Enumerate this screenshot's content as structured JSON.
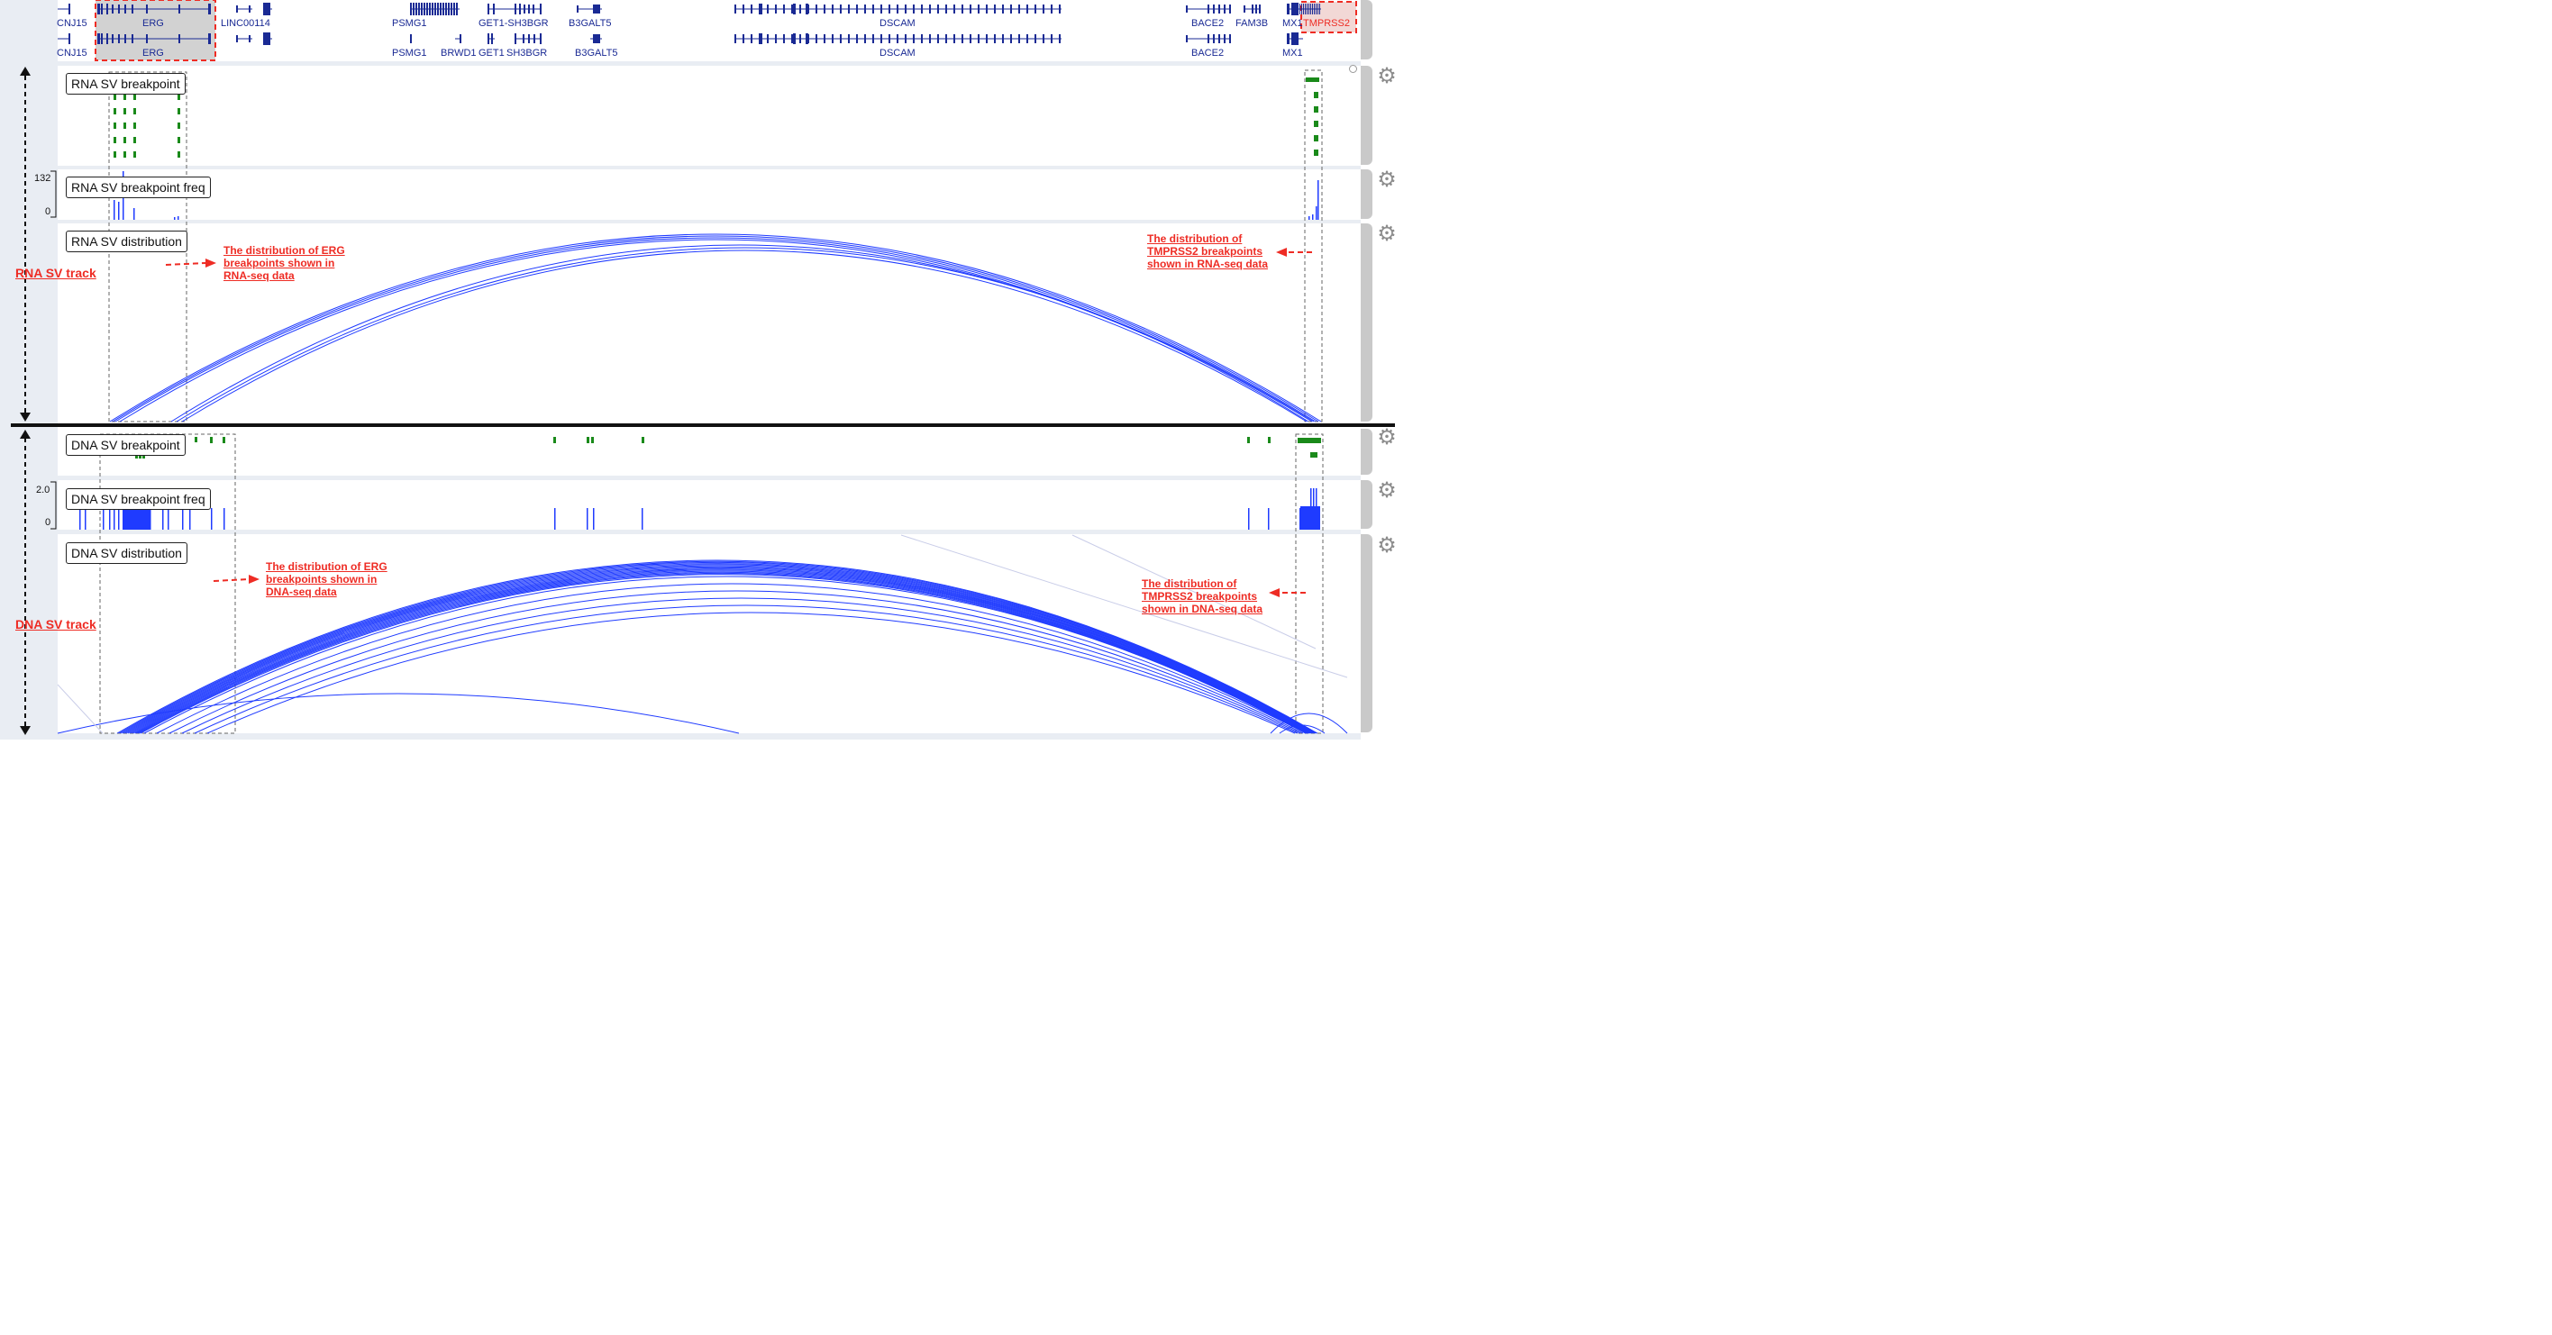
{
  "genes": {
    "top_row": [
      "CNJ15",
      "ERG",
      "LINC00114",
      "PSMG1",
      "GET1-SH3BGR",
      "B3GALT5",
      "DSCAM",
      "BACE2",
      "FAM3B",
      "MX1",
      "TMPRSS2"
    ],
    "bottom_row": [
      "CNJ15",
      "ERG",
      "PSMG1",
      "BRWD1",
      "GET1",
      "SH3BGR",
      "B3GALT5",
      "DSCAM",
      "BACE2",
      "MX1"
    ]
  },
  "tracks": {
    "rna_breakpoint": "RNA SV breakpoint",
    "rna_freq": "RNA SV breakpoint freq",
    "rna_freq_max": "132",
    "rna_freq_min": "0",
    "rna_distribution": "RNA SV distribution",
    "dna_breakpoint": "DNA SV breakpoint",
    "dna_freq": "DNA SV breakpoint freq",
    "dna_freq_max": "2.0",
    "dna_freq_min": "0",
    "dna_distribution": "DNA SV distribution"
  },
  "section_labels": {
    "rna": "RNA SV track",
    "dna": "DNA SV track"
  },
  "annotations": {
    "rna_erg": "The distribution of ERG\nbreakpoints shown in\nRNA-seq data",
    "rna_tmprss2": "The distribution of\nTMPRSS2 breakpoints\nshown in RNA-seq data",
    "dna_erg": "The distribution of ERG\nbreakpoints shown in\nDNA-seq data",
    "dna_tmprss2": "The distribution of\nTMPRSS2 breakpoints\nshown in DNA-seq data"
  },
  "icons": {
    "gear": "gear-icon",
    "collapse": "circle-icon"
  },
  "colors": {
    "gene": "#1a2a94",
    "arc": "#1f3bff",
    "breakpoint": "#1a8a1a",
    "annotation": "#ee2c24",
    "highlight_fill": "#d2d2d2",
    "gear": "#8d8d8d"
  }
}
